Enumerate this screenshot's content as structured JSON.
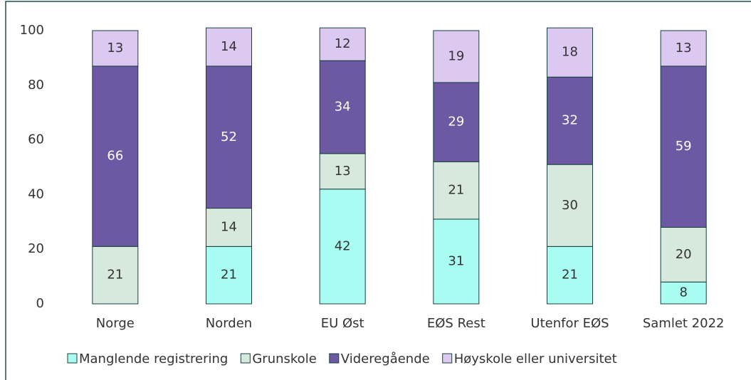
{
  "chart_data": {
    "type": "stacked-bar",
    "categories": [
      "Norge",
      "Norden",
      "EU Øst",
      "EØS Rest",
      "Utenfor EØS",
      "Samlet 2022"
    ],
    "series": [
      {
        "name": "Manglende registrering",
        "color": "#a8fcf2",
        "values": [
          null,
          21,
          42,
          31,
          21,
          8
        ]
      },
      {
        "name": "Grunskole",
        "color": "#d6e9dc",
        "values": [
          21,
          14,
          13,
          21,
          30,
          20
        ]
      },
      {
        "name": "Videregående",
        "color": "#6d59a3",
        "values": [
          66,
          52,
          34,
          29,
          32,
          59
        ]
      },
      {
        "name": "Høyskole eller universitet",
        "color": "#dcc9f2",
        "values": [
          13,
          14,
          12,
          19,
          18,
          13
        ]
      }
    ],
    "ylim": [
      0,
      100
    ],
    "yticks": [
      0,
      20,
      40,
      60,
      80,
      100
    ],
    "grid": false,
    "legend": "bottom"
  }
}
